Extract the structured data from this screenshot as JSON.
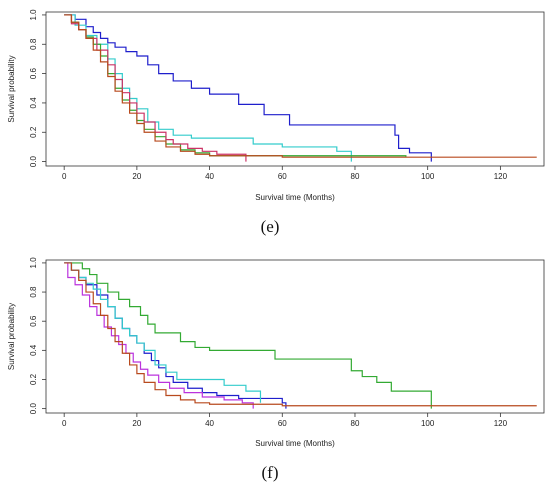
{
  "chart_data": [
    {
      "type": "line",
      "panel_label": "(e)",
      "xlabel": "Survival time (Months)",
      "ylabel": "Survival probability",
      "xlim": [
        -5,
        132
      ],
      "ylim": [
        -0.03,
        1.02
      ],
      "xticks": [
        0,
        20,
        40,
        60,
        80,
        100,
        120
      ],
      "yticks": [
        0.0,
        0.2,
        0.4,
        0.6,
        0.8,
        1.0
      ],
      "grid": false,
      "series": [
        {
          "color": "#1f1fcc",
          "points": [
            [
              0,
              1.0
            ],
            [
              3,
              0.97
            ],
            [
              6,
              0.92
            ],
            [
              8,
              0.88
            ],
            [
              10,
              0.84
            ],
            [
              12,
              0.81
            ],
            [
              14,
              0.78
            ],
            [
              17,
              0.75
            ],
            [
              20,
              0.72
            ],
            [
              23,
              0.66
            ],
            [
              26,
              0.6
            ],
            [
              30,
              0.55
            ],
            [
              35,
              0.5
            ],
            [
              40,
              0.46
            ],
            [
              48,
              0.39
            ],
            [
              55,
              0.32
            ],
            [
              62,
              0.25
            ],
            [
              72,
              0.25
            ],
            [
              86,
              0.25
            ],
            [
              91,
              0.18
            ],
            [
              92,
              0.09
            ],
            [
              95,
              0.06
            ],
            [
              101,
              0.06
            ],
            [
              101,
              0.0
            ]
          ]
        },
        {
          "color": "#33cccc",
          "points": [
            [
              0,
              1.0
            ],
            [
              3,
              0.93
            ],
            [
              6,
              0.86
            ],
            [
              9,
              0.8
            ],
            [
              12,
              0.7
            ],
            [
              14,
              0.6
            ],
            [
              16,
              0.5
            ],
            [
              18,
              0.43
            ],
            [
              20,
              0.36
            ],
            [
              23,
              0.27
            ],
            [
              26,
              0.22
            ],
            [
              30,
              0.18
            ],
            [
              35,
              0.16
            ],
            [
              45,
              0.16
            ],
            [
              52,
              0.12
            ],
            [
              60,
              0.1
            ],
            [
              75,
              0.07
            ],
            [
              79,
              0.07
            ],
            [
              79,
              0.0
            ]
          ]
        },
        {
          "color": "#33aa33",
          "points": [
            [
              0,
              1.0
            ],
            [
              2,
              0.95
            ],
            [
              4,
              0.9
            ],
            [
              6,
              0.85
            ],
            [
              8,
              0.8
            ],
            [
              10,
              0.72
            ],
            [
              12,
              0.6
            ],
            [
              14,
              0.5
            ],
            [
              16,
              0.42
            ],
            [
              18,
              0.35
            ],
            [
              20,
              0.28
            ],
            [
              22,
              0.22
            ],
            [
              25,
              0.17
            ],
            [
              28,
              0.12
            ],
            [
              32,
              0.08
            ],
            [
              36,
              0.06
            ],
            [
              40,
              0.06
            ],
            [
              40,
              0.04
            ],
            [
              94,
              0.04
            ],
            [
              94,
              0.03
            ]
          ]
        },
        {
          "color": "#cc3366",
          "points": [
            [
              0,
              1.0
            ],
            [
              2,
              0.94
            ],
            [
              4,
              0.9
            ],
            [
              6,
              0.84
            ],
            [
              9,
              0.76
            ],
            [
              12,
              0.66
            ],
            [
              14,
              0.56
            ],
            [
              16,
              0.47
            ],
            [
              18,
              0.4
            ],
            [
              20,
              0.33
            ],
            [
              22,
              0.27
            ],
            [
              25,
              0.2
            ],
            [
              28,
              0.15
            ],
            [
              30,
              0.12
            ],
            [
              34,
              0.09
            ],
            [
              38,
              0.07
            ],
            [
              42,
              0.05
            ],
            [
              50,
              0.05
            ],
            [
              50,
              0.0
            ]
          ]
        },
        {
          "color": "#b84a1e",
          "points": [
            [
              0,
              1.0
            ],
            [
              2,
              0.95
            ],
            [
              4,
              0.9
            ],
            [
              6,
              0.84
            ],
            [
              8,
              0.76
            ],
            [
              10,
              0.68
            ],
            [
              12,
              0.58
            ],
            [
              14,
              0.48
            ],
            [
              16,
              0.4
            ],
            [
              18,
              0.33
            ],
            [
              20,
              0.26
            ],
            [
              22,
              0.2
            ],
            [
              25,
              0.14
            ],
            [
              28,
              0.1
            ],
            [
              32,
              0.07
            ],
            [
              36,
              0.05
            ],
            [
              40,
              0.04
            ],
            [
              60,
              0.03
            ],
            [
              130,
              0.03
            ]
          ]
        }
      ]
    },
    {
      "type": "line",
      "panel_label": "(f)",
      "xlabel": "Survival time (Months)",
      "ylabel": "Survival probability",
      "xlim": [
        -5,
        132
      ],
      "ylim": [
        -0.03,
        1.02
      ],
      "xticks": [
        0,
        20,
        40,
        60,
        80,
        100,
        120
      ],
      "yticks": [
        0.0,
        0.2,
        0.4,
        0.6,
        0.8,
        1.0
      ],
      "grid": false,
      "series": [
        {
          "color": "#33aa33",
          "points": [
            [
              0,
              1.0
            ],
            [
              3,
              1.0
            ],
            [
              5,
              0.96
            ],
            [
              7,
              0.92
            ],
            [
              9,
              0.86
            ],
            [
              12,
              0.8
            ],
            [
              15,
              0.75
            ],
            [
              18,
              0.7
            ],
            [
              21,
              0.64
            ],
            [
              23,
              0.58
            ],
            [
              25,
              0.52
            ],
            [
              28,
              0.52
            ],
            [
              32,
              0.46
            ],
            [
              36,
              0.42
            ],
            [
              40,
              0.4
            ],
            [
              50,
              0.4
            ],
            [
              58,
              0.34
            ],
            [
              72,
              0.34
            ],
            [
              79,
              0.26
            ],
            [
              82,
              0.22
            ],
            [
              86,
              0.18
            ],
            [
              90,
              0.12
            ],
            [
              100,
              0.12
            ],
            [
              101,
              0.0
            ]
          ]
        },
        {
          "color": "#1f1fcc",
          "points": [
            [
              0,
              1.0
            ],
            [
              2,
              0.95
            ],
            [
              4,
              0.9
            ],
            [
              6,
              0.85
            ],
            [
              9,
              0.78
            ],
            [
              12,
              0.7
            ],
            [
              14,
              0.62
            ],
            [
              16,
              0.55
            ],
            [
              18,
              0.5
            ],
            [
              20,
              0.45
            ],
            [
              22,
              0.38
            ],
            [
              24,
              0.33
            ],
            [
              26,
              0.28
            ],
            [
              28,
              0.22
            ],
            [
              30,
              0.18
            ],
            [
              34,
              0.14
            ],
            [
              38,
              0.11
            ],
            [
              42,
              0.09
            ],
            [
              48,
              0.07
            ],
            [
              55,
              0.07
            ],
            [
              60,
              0.04
            ],
            [
              61,
              0.04
            ],
            [
              61,
              0.0
            ]
          ]
        },
        {
          "color": "#33cccc",
          "points": [
            [
              0,
              1.0
            ],
            [
              2,
              0.95
            ],
            [
              4,
              0.9
            ],
            [
              6,
              0.86
            ],
            [
              8,
              0.82
            ],
            [
              10,
              0.75
            ],
            [
              12,
              0.7
            ],
            [
              14,
              0.62
            ],
            [
              16,
              0.55
            ],
            [
              18,
              0.5
            ],
            [
              20,
              0.45
            ],
            [
              22,
              0.4
            ],
            [
              25,
              0.3
            ],
            [
              28,
              0.25
            ],
            [
              31,
              0.2
            ],
            [
              36,
              0.2
            ],
            [
              44,
              0.16
            ],
            [
              50,
              0.12
            ],
            [
              54,
              0.1
            ],
            [
              54,
              0.04
            ]
          ]
        },
        {
          "color": "#bb33dd",
          "points": [
            [
              0,
              1.0
            ],
            [
              1,
              0.9
            ],
            [
              3,
              0.85
            ],
            [
              5,
              0.78
            ],
            [
              7,
              0.7
            ],
            [
              9,
              0.64
            ],
            [
              11,
              0.56
            ],
            [
              13,
              0.5
            ],
            [
              15,
              0.44
            ],
            [
              17,
              0.38
            ],
            [
              19,
              0.32
            ],
            [
              21,
              0.27
            ],
            [
              23,
              0.23
            ],
            [
              26,
              0.18
            ],
            [
              29,
              0.14
            ],
            [
              33,
              0.11
            ],
            [
              38,
              0.08
            ],
            [
              44,
              0.06
            ],
            [
              49,
              0.04
            ],
            [
              52,
              0.04
            ],
            [
              52,
              0.0
            ]
          ]
        },
        {
          "color": "#b84a1e",
          "points": [
            [
              0,
              1.0
            ],
            [
              2,
              0.95
            ],
            [
              4,
              0.88
            ],
            [
              6,
              0.8
            ],
            [
              8,
              0.72
            ],
            [
              10,
              0.64
            ],
            [
              12,
              0.55
            ],
            [
              14,
              0.46
            ],
            [
              16,
              0.38
            ],
            [
              18,
              0.3
            ],
            [
              20,
              0.24
            ],
            [
              22,
              0.18
            ],
            [
              25,
              0.13
            ],
            [
              28,
              0.09
            ],
            [
              32,
              0.06
            ],
            [
              36,
              0.04
            ],
            [
              40,
              0.03
            ],
            [
              60,
              0.02
            ],
            [
              130,
              0.02
            ]
          ]
        }
      ]
    }
  ]
}
